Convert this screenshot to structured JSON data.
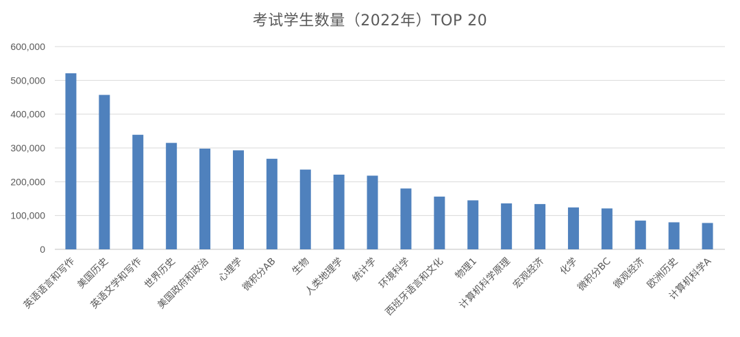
{
  "chart_data": {
    "type": "bar",
    "title": "考试学生数量（2022年）TOP 20",
    "xlabel": "",
    "ylabel": "",
    "ylim": [
      0,
      600000
    ],
    "yticks": [
      0,
      100000,
      200000,
      300000,
      400000,
      500000,
      600000
    ],
    "ytick_labels": [
      "0",
      "100,000",
      "200,000",
      "300,000",
      "400,000",
      "500,000",
      "600,000"
    ],
    "grid": true,
    "legend": "none",
    "bar_color": "#4F81BD",
    "categories": [
      "英语语言和写作",
      "美国历史",
      "英语文学和写作",
      "世界历史",
      "美国政府和政治",
      "心理学",
      "微积分AB",
      "生物",
      "人类地理学",
      "统计学",
      "环境科学",
      "西班牙语言和文化",
      "物理1",
      "计算机科学原理",
      "宏观经济",
      "化学",
      "微积分BC",
      "微观经济",
      "欧洲历史",
      "计算机科学A"
    ],
    "values": [
      521000,
      457000,
      339000,
      315000,
      298000,
      293000,
      268000,
      236000,
      221000,
      218000,
      180000,
      156000,
      145000,
      136000,
      134000,
      124000,
      121000,
      85000,
      80000,
      78000
    ]
  }
}
